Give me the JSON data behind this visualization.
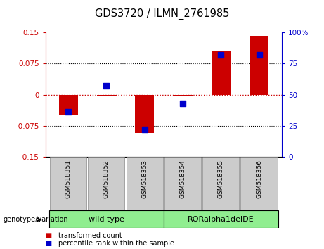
{
  "title": "GDS3720 / ILMN_2761985",
  "samples": [
    "GSM518351",
    "GSM518352",
    "GSM518353",
    "GSM518354",
    "GSM518355",
    "GSM518356"
  ],
  "transformed_count": [
    -0.05,
    -0.002,
    -0.092,
    -0.002,
    0.105,
    0.142
  ],
  "percentile_rank": [
    36,
    57,
    22,
    43,
    82,
    82
  ],
  "ylim_left": [
    -0.15,
    0.15
  ],
  "ylim_right": [
    0,
    100
  ],
  "yticks_left": [
    -0.15,
    -0.075,
    0,
    0.075,
    0.15
  ],
  "yticks_right": [
    0,
    25,
    50,
    75,
    100
  ],
  "ytick_labels_left": [
    "-0.15",
    "-0.075",
    "0",
    "0.075",
    "0.15"
  ],
  "ytick_labels_right": [
    "0",
    "25",
    "50",
    "75",
    "100%"
  ],
  "bar_color": "#cc0000",
  "dot_color": "#0000cc",
  "zero_line_color": "#cc0000",
  "group_info": [
    {
      "label": "wild type",
      "start": -0.5,
      "end": 2.5,
      "color": "#90ee90"
    },
    {
      "label": "RORalpha1delDE",
      "start": 2.5,
      "end": 5.5,
      "color": "#90ee90"
    }
  ],
  "genotype_label": "genotype/variation",
  "legend_items": [
    {
      "label": "transformed count",
      "color": "#cc0000"
    },
    {
      "label": "percentile rank within the sample",
      "color": "#0000cc"
    }
  ],
  "bar_width": 0.5,
  "dot_size": 35,
  "xlim": [
    -0.6,
    5.6
  ]
}
